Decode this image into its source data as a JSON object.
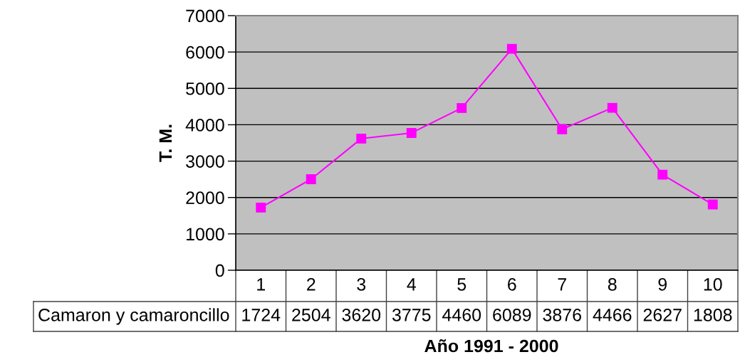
{
  "chart_data": {
    "type": "line",
    "xlabel": "Año 1991 - 2000",
    "ylabel": "T. M.",
    "categories": [
      "1",
      "2",
      "3",
      "4",
      "5",
      "6",
      "7",
      "8",
      "9",
      "10"
    ],
    "series": [
      {
        "name": "Camaron y camaroncillo",
        "color": "#ff00ff",
        "values": [
          1724,
          2504,
          3620,
          3775,
          4460,
          6089,
          3876,
          4466,
          2627,
          1808
        ]
      }
    ],
    "ylim": [
      0,
      7000
    ],
    "yticks": [
      0,
      1000,
      2000,
      3000,
      4000,
      5000,
      6000,
      7000
    ],
    "grid": "y",
    "legend": false,
    "marker": "square",
    "line_style": "solid",
    "data_labels": true
  }
}
